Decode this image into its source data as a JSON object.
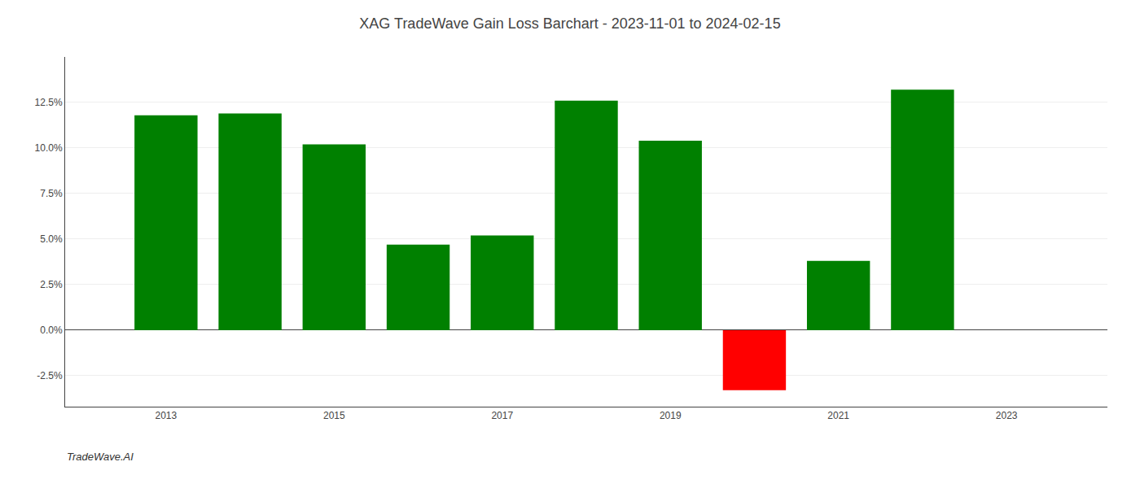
{
  "chart_data": {
    "type": "bar",
    "title": "XAG TradeWave Gain Loss Barchart - 2023-11-01 to 2024-02-15",
    "annotations": [
      "TradeWave.AI"
    ],
    "x": [
      2013,
      2014,
      2015,
      2016,
      2017,
      2018,
      2019,
      2020,
      2021,
      2022
    ],
    "values": [
      0.118,
      0.119,
      0.102,
      0.047,
      0.052,
      0.126,
      0.104,
      -0.033,
      0.038,
      0.132
    ],
    "colors": [
      "#008000",
      "#008000",
      "#008000",
      "#008000",
      "#008000",
      "#008000",
      "#008000",
      "#ff0000",
      "#008000",
      "#008000"
    ],
    "xlim": [
      2011.8,
      2024.2
    ],
    "xticks": [
      2013,
      2015,
      2017,
      2019,
      2021,
      2023
    ],
    "ylim": [
      -0.042,
      0.15
    ],
    "yticks": [
      {
        "value": -0.025,
        "label": "-2.5%"
      },
      {
        "value": 0.0,
        "label": "0.0%"
      },
      {
        "value": 0.025,
        "label": "2.5%"
      },
      {
        "value": 0.05,
        "label": "5.0%"
      },
      {
        "value": 0.075,
        "label": "7.5%"
      },
      {
        "value": 0.1,
        "label": "10.0%"
      },
      {
        "value": 0.125,
        "label": "12.5%"
      }
    ],
    "grid": true
  }
}
